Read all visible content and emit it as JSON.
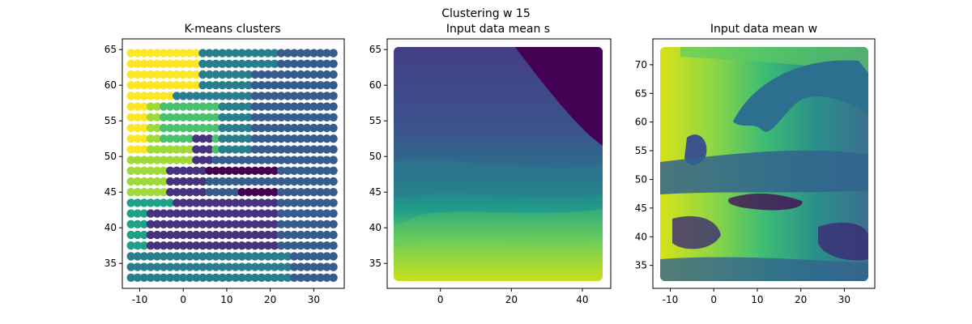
{
  "figure": {
    "title": "Clustering w 15"
  },
  "palette": {
    "c0": "#440154",
    "c1": "#46327e",
    "c2": "#365c8d",
    "c3": "#277f8e",
    "c4": "#1fa187",
    "c5": "#4ac16d",
    "c6": "#a0da39",
    "c7": "#fde725"
  },
  "chart_data": [
    {
      "type": "scatter",
      "title": "K-means clusters",
      "xlim": [
        -14,
        37
      ],
      "ylim": [
        31.5,
        66.5
      ],
      "xticks": [
        -10,
        0,
        10,
        20,
        30
      ],
      "yticks": [
        35,
        40,
        45,
        50,
        55,
        60,
        65
      ],
      "grid": false,
      "legend": "none",
      "description_of_values": "Regular lat/lon point grid from -12 to 34.5 lon and 33 to 64.5 lat, colored by cluster id (0 dark purple through 7 yellow)"
    },
    {
      "type": "heatmap",
      "title": "Input data mean s",
      "xlim": [
        -15,
        48
      ],
      "ylim": [
        31.5,
        66.5
      ],
      "xticks": [
        0,
        20,
        40
      ],
      "yticks": [
        35,
        40,
        45,
        50,
        55,
        60,
        65
      ],
      "grid": false,
      "legend": "none"
    },
    {
      "type": "heatmap",
      "title": "Input data mean w",
      "xlim": [
        -14,
        37
      ],
      "ylim": [
        31,
        74.5
      ],
      "xticks": [
        -10,
        0,
        10,
        20,
        30
      ],
      "yticks": [
        35,
        40,
        45,
        50,
        55,
        60,
        65,
        70
      ],
      "grid": false,
      "legend": "none"
    }
  ]
}
